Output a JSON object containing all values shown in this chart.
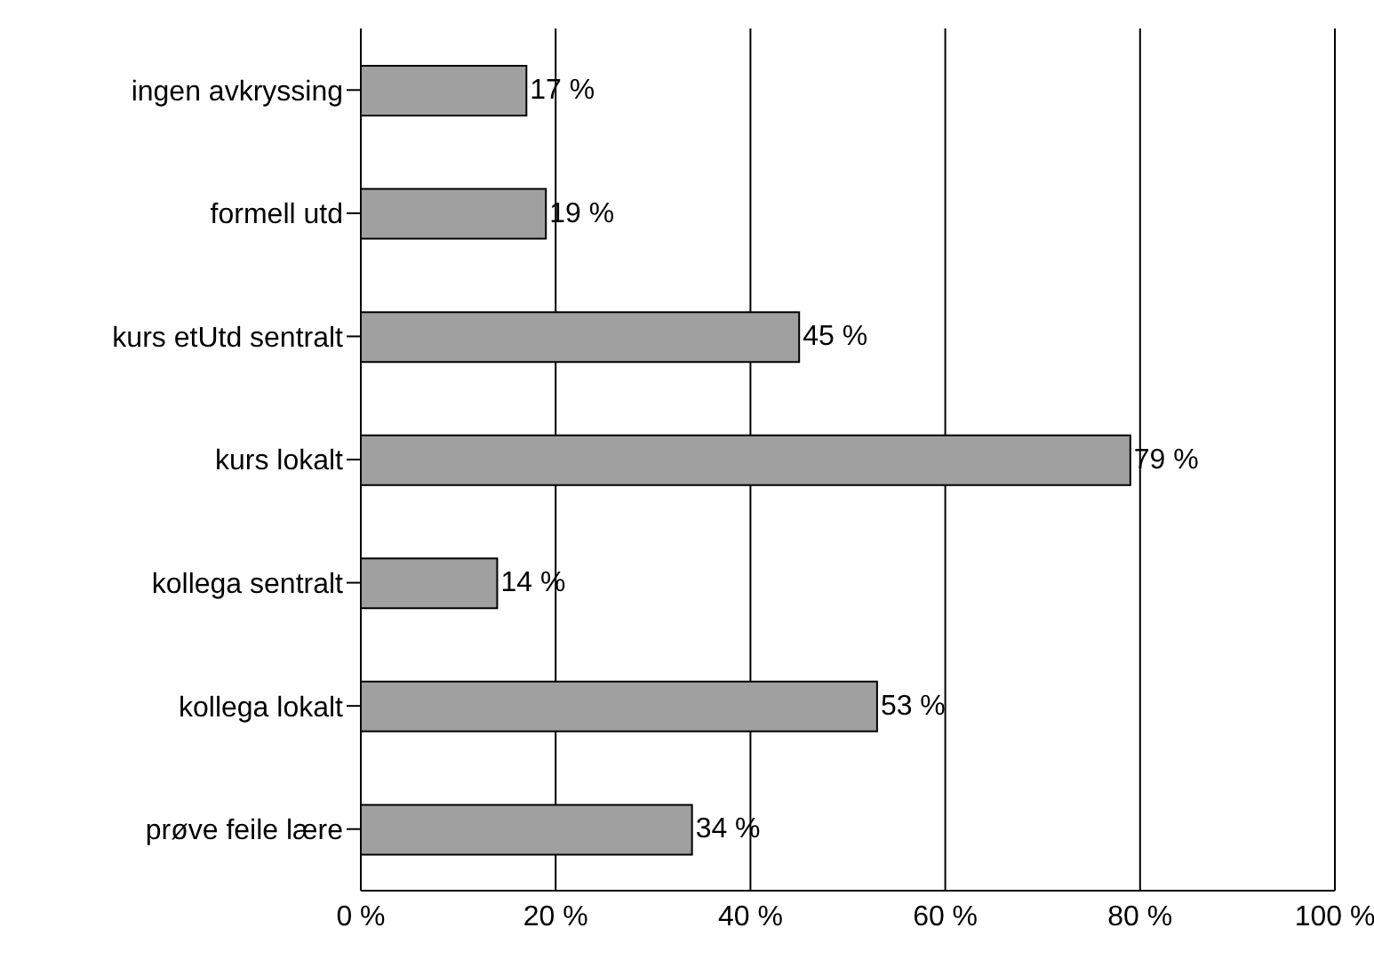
{
  "chart_data": {
    "type": "bar",
    "orientation": "horizontal",
    "categories": [
      "ingen avkryssing",
      "formell utd",
      "kurs etUtd sentralt",
      "kurs lokalt",
      "kollega sentralt",
      "kollega lokalt",
      "prøve feile lære"
    ],
    "values": [
      17,
      19,
      45,
      79,
      14,
      53,
      34
    ],
    "value_labels": [
      "17 %",
      "19 %",
      "45 %",
      "79 %",
      "14 %",
      "53 %",
      "34 %"
    ],
    "color": "#a0a0a0",
    "xlim": [
      0,
      100
    ],
    "xticks": [
      {
        "value": 0,
        "label": "0 %"
      },
      {
        "value": 20,
        "label": "20 %"
      },
      {
        "value": 40,
        "label": "40 %"
      },
      {
        "value": 60,
        "label": "60 %"
      },
      {
        "value": 80,
        "label": "80 %"
      },
      {
        "value": 100,
        "label": "100 %"
      }
    ],
    "grid": "x",
    "legend": false
  }
}
